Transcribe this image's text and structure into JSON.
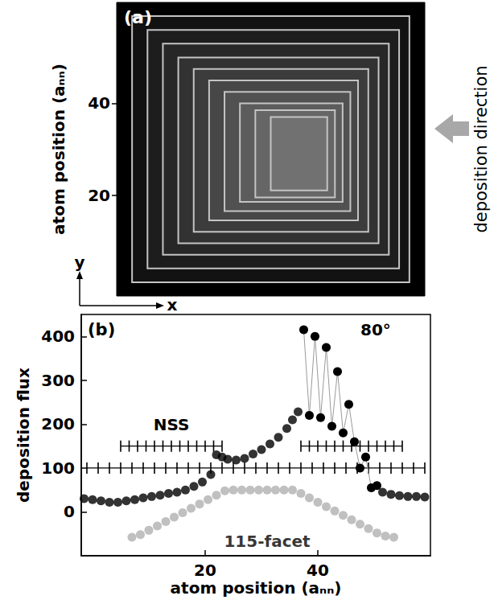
{
  "chart_data": [
    {
      "type": "custom",
      "title": "(a)",
      "ylabel": "atom position (aₙₙ)",
      "arrows": {
        "x": "x",
        "y": "y"
      },
      "annotation": "deposition direction",
      "xlim": [
        0,
        60
      ],
      "ylim": [
        -2,
        62
      ],
      "yticks": [
        20,
        40
      ],
      "tick_labels": "y",
      "color": "#000000",
      "terraces": [
        [
          3,
          57,
          1,
          59
        ],
        [
          6,
          55,
          4,
          56
        ],
        [
          9,
          53,
          7,
          53
        ],
        [
          12,
          51,
          9.5,
          50
        ],
        [
          15,
          49,
          12,
          47.5
        ],
        [
          18,
          47,
          14.5,
          45
        ],
        [
          21,
          45.5,
          16.5,
          42.5
        ],
        [
          24,
          44,
          18.5,
          40
        ],
        [
          27,
          42.5,
          19.5,
          38.5
        ],
        [
          30,
          41,
          21,
          37
        ]
      ]
    },
    {
      "type": "scatter",
      "title": "(b)",
      "xlabel": "atom position (aₙₙ)",
      "ylabel": "deposition flux",
      "xlim": [
        -2,
        60
      ],
      "ylim": [
        -100,
        450
      ],
      "xticks": [
        20,
        40
      ],
      "yticks": [
        0,
        100,
        200,
        300,
        400
      ],
      "grid": false,
      "series": [
        {
          "type": "line",
          "marker": "vline",
          "color": "#000000",
          "x": [
            -1,
            1,
            3,
            5,
            7,
            9,
            11,
            13,
            15,
            17,
            19,
            21,
            23,
            25,
            27,
            29,
            31,
            33,
            35,
            37,
            39,
            41,
            43,
            45,
            47,
            49,
            51,
            53,
            55,
            57,
            59
          ],
          "values": [
            100,
            100,
            100,
            100,
            100,
            100,
            100,
            100,
            100,
            100,
            100,
            100,
            100,
            100,
            100,
            100,
            100,
            100,
            100,
            100,
            100,
            100,
            100,
            100,
            100,
            100,
            100,
            100,
            100,
            100,
            100
          ]
        },
        {
          "name": "NSS",
          "type": "line",
          "marker": "vline",
          "color": "#000000",
          "x": [
            5,
            6.5,
            8,
            9.5,
            11,
            12.5,
            14,
            15.5,
            17,
            18.5,
            20,
            21.5,
            23
          ],
          "values": [
            150,
            150,
            150,
            150,
            150,
            150,
            150,
            150,
            150,
            150,
            150,
            150,
            150
          ]
        },
        {
          "type": "line",
          "marker": "vline",
          "color": "#000000",
          "x": [
            37,
            38.5,
            40,
            41.5,
            43,
            44.5,
            46,
            47.5,
            49,
            50.5,
            52,
            53.5,
            55
          ],
          "values": [
            150,
            150,
            150,
            150,
            150,
            150,
            150,
            150,
            150,
            150,
            150,
            150,
            150
          ]
        },
        {
          "name": "115-facet",
          "type": "scatter",
          "marker": "circle",
          "color": "#b0b0b0",
          "x": [
            7,
            8.5,
            10,
            11.5,
            13,
            14.5,
            16,
            17.5,
            19,
            20.5,
            22,
            23.5,
            25,
            26.5,
            28,
            29.5,
            31,
            32.5,
            34,
            35.5,
            37,
            38.5,
            40,
            41.5,
            43,
            44.5,
            46,
            47.5,
            49,
            50.5,
            52,
            53.5
          ],
          "values": [
            -58,
            -52,
            -42,
            -32,
            -22,
            -12,
            -2,
            8,
            18,
            28,
            38,
            48,
            50,
            50,
            50,
            50,
            50,
            50,
            50,
            50,
            42,
            32,
            22,
            12,
            2,
            -8,
            -18,
            -28,
            -38,
            -48,
            -55,
            -58
          ]
        },
        {
          "type": "scatter",
          "marker": "circle",
          "color": "#000000",
          "x": [
            -1.5,
            0,
            1.5,
            3,
            4.5,
            6,
            7.5,
            9,
            10.5,
            12,
            13.5,
            15,
            16.5,
            18,
            19.5,
            21,
            22,
            23,
            24,
            25.5,
            27,
            28.5,
            30,
            31.5,
            33,
            34.5,
            35.5,
            36.5
          ],
          "values": [
            30,
            28,
            25,
            22,
            22,
            25,
            28,
            32,
            35,
            38,
            42,
            45,
            50,
            58,
            68,
            85,
            130,
            125,
            120,
            118,
            122,
            132,
            142,
            155,
            170,
            190,
            210,
            228
          ]
        },
        {
          "name": "80°",
          "type": "line",
          "marker": "circle",
          "color": "#000000",
          "x": [
            37.5,
            38.5,
            39.5,
            40.5,
            41.5,
            42.5,
            43.5,
            44.5,
            45.5,
            46.5,
            47.5,
            48.5,
            49.5,
            50.5
          ],
          "values": [
            415,
            220,
            400,
            215,
            375,
            195,
            320,
            180,
            245,
            160,
            100,
            125,
            55,
            60
          ]
        },
        {
          "type": "scatter",
          "marker": "circle",
          "color": "#000000",
          "x": [
            51.5,
            53,
            54.5,
            56,
            57.5,
            59
          ],
          "values": [
            45,
            40,
            37,
            35,
            35,
            34
          ]
        }
      ]
    }
  ]
}
